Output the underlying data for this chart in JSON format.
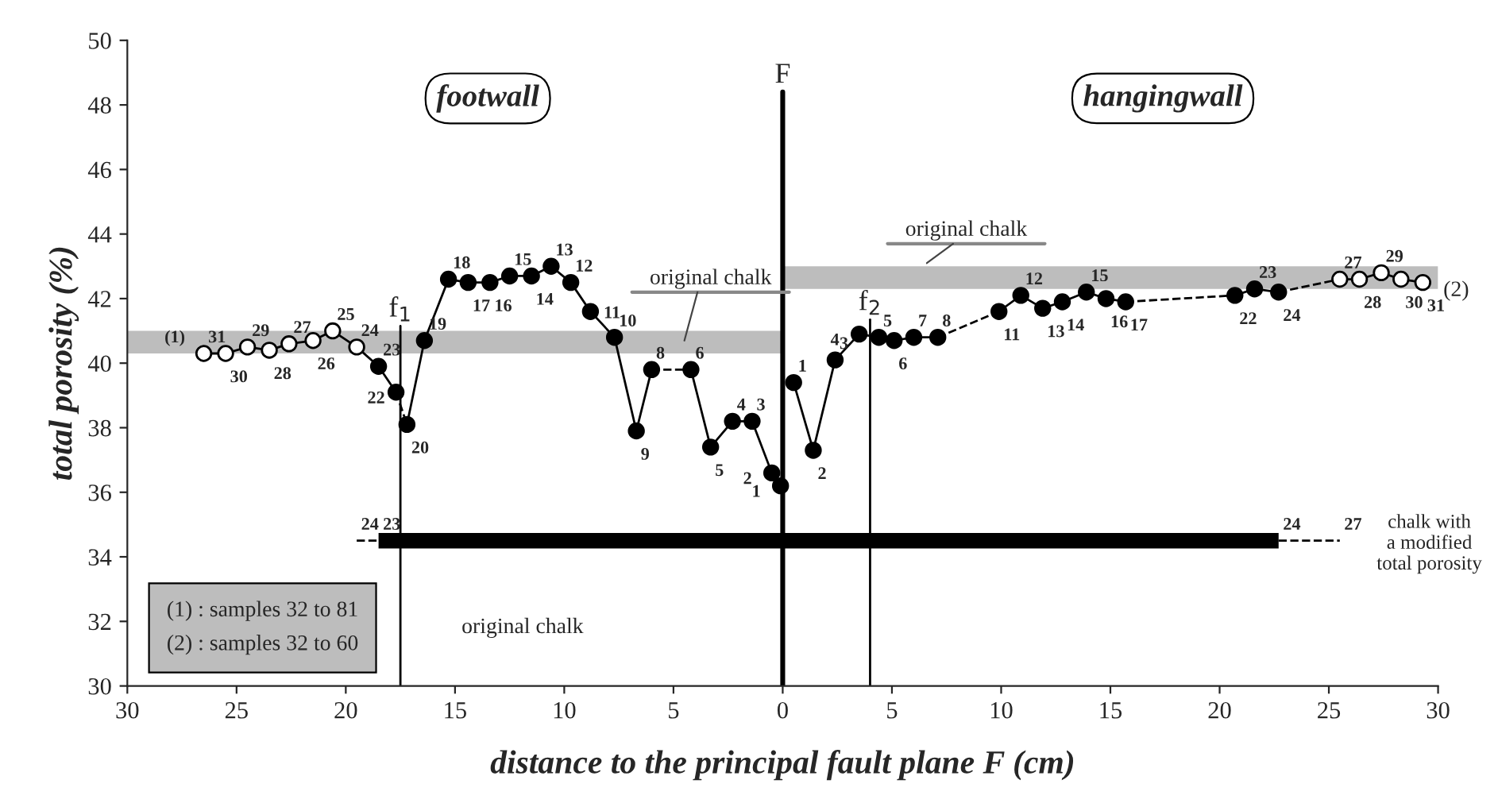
{
  "chart_data": {
    "type": "line",
    "xlabel": "distance to the principal fault plane F (cm)",
    "ylabel": "total porosity (%)",
    "xlim": [
      -30,
      30
    ],
    "xticks": [
      {
        "value": -30,
        "label": "30"
      },
      {
        "value": -25,
        "label": "25"
      },
      {
        "value": -20,
        "label": "20"
      },
      {
        "value": -15,
        "label": "15"
      },
      {
        "value": -10,
        "label": "10"
      },
      {
        "value": -5,
        "label": "5"
      },
      0,
      5,
      10,
      15,
      20,
      25,
      30
    ],
    "ylim": [
      30,
      50
    ],
    "yticks": [
      30,
      32,
      34,
      36,
      38,
      40,
      42,
      44,
      46,
      48,
      50
    ],
    "grid": false,
    "series": [
      {
        "color": "#bdbdbd",
        "x": [
          -30,
          0
        ],
        "values": [
          null,
          null
        ],
        "lower": [
          40.3,
          40.3
        ],
        "upper": [
          41.0,
          41.0
        ]
      },
      {
        "color": "#bdbdbd",
        "x": [
          0,
          30
        ],
        "values": [
          null,
          null
        ],
        "lower": [
          42.3,
          42.3
        ],
        "upper": [
          43.0,
          43.0
        ]
      },
      {
        "color": "#000000",
        "marker": "circle",
        "line_style": "solid",
        "x": [
          -26.5,
          -25.5,
          -24.5,
          -23.5,
          -22.6,
          -21.5,
          -20.6,
          -19.5,
          -18.5,
          -17.7
        ],
        "values": [
          40.3,
          40.3,
          40.5,
          40.4,
          40.6,
          40.7,
          41.0,
          40.5,
          39.9,
          39.1
        ],
        "colors": [
          "#ffffff",
          "#ffffff",
          "#ffffff",
          "#ffffff",
          "#ffffff",
          "#ffffff",
          "#ffffff",
          "#ffffff",
          "#000000",
          "#000000"
        ]
      },
      {
        "color": "#000000",
        "line_style": "dashed",
        "x": [
          -17.7,
          -17.2
        ],
        "values": [
          39.1,
          38.1
        ]
      },
      {
        "color": "#000000",
        "marker": "circle",
        "line_style": "solid",
        "x": [
          -17.2,
          -16.4,
          -15.3,
          -14.4,
          -13.4,
          -12.5,
          -11.5,
          -10.6,
          -9.7,
          -8.8,
          -7.7,
          -6.7,
          -6.0
        ],
        "values": [
          38.1,
          40.7,
          42.6,
          42.5,
          42.5,
          42.7,
          42.7,
          43.0,
          42.5,
          41.6,
          40.8,
          37.9,
          39.8
        ],
        "colors": [
          "#000000",
          "#000000",
          "#000000",
          "#000000",
          "#000000",
          "#000000",
          "#000000",
          "#000000",
          "#000000",
          "#000000",
          "#000000",
          "#000000",
          "#000000"
        ]
      },
      {
        "color": "#000000",
        "line_style": "dashed",
        "x": [
          -6.0,
          -4.2
        ],
        "values": [
          39.8,
          39.8
        ]
      },
      {
        "color": "#000000",
        "marker": "circle",
        "line_style": "solid",
        "x": [
          -4.2,
          -3.3,
          -2.3,
          -1.4,
          -0.5,
          -0.1
        ],
        "values": [
          39.8,
          37.4,
          38.2,
          38.2,
          36.6,
          36.2
        ],
        "colors": [
          "#000000",
          "#000000",
          "#000000",
          "#000000",
          "#000000",
          "#000000"
        ]
      },
      {
        "color": "#000000",
        "marker": "circle",
        "line_style": "solid",
        "x": [
          0.5,
          1.4,
          2.4,
          3.5,
          4.4,
          5.1,
          6.0,
          7.1
        ],
        "values": [
          39.4,
          37.3,
          40.1,
          40.9,
          40.8,
          40.7,
          40.8,
          40.8
        ],
        "colors": [
          "#000000",
          "#000000",
          "#000000",
          "#000000",
          "#000000",
          "#000000",
          "#000000",
          "#000000"
        ]
      },
      {
        "color": "#000000",
        "line_style": "dashed",
        "x": [
          7.1,
          9.9
        ],
        "values": [
          40.8,
          41.6
        ]
      },
      {
        "color": "#000000",
        "marker": "circle",
        "line_style": "solid",
        "x": [
          9.9,
          10.9,
          11.9,
          12.8,
          13.9,
          14.8,
          15.7
        ],
        "values": [
          41.6,
          42.1,
          41.7,
          41.9,
          42.2,
          42.0,
          41.9
        ],
        "colors": [
          "#000000",
          "#000000",
          "#000000",
          "#000000",
          "#000000",
          "#000000",
          "#000000"
        ]
      },
      {
        "color": "#000000",
        "line_style": "dashed",
        "x": [
          15.7,
          20.7
        ],
        "values": [
          41.9,
          42.1
        ]
      },
      {
        "color": "#000000",
        "marker": "circle",
        "line_style": "solid",
        "x": [
          20.7,
          21.6,
          22.7
        ],
        "values": [
          42.1,
          42.3,
          42.2
        ],
        "colors": [
          "#000000",
          "#000000",
          "#000000"
        ]
      },
      {
        "color": "#000000",
        "line_style": "dashed",
        "x": [
          22.7,
          25.5
        ],
        "values": [
          42.2,
          42.6
        ]
      },
      {
        "color": "#000000",
        "marker": "circle",
        "line_style": "solid",
        "x": [
          25.5,
          26.4,
          27.4,
          28.3,
          29.3
        ],
        "values": [
          42.6,
          42.6,
          42.8,
          42.6,
          42.5
        ],
        "colors": [
          "#ffffff",
          "#ffffff",
          "#ffffff",
          "#ffffff",
          "#ffffff"
        ]
      },
      {
        "color": "#000000",
        "marker": "none",
        "line_style": "solid",
        "x": [
          -18.5,
          22.7
        ],
        "values": [
          34.5,
          34.5
        ]
      },
      {
        "color": "#000000",
        "line_style": "dashed",
        "x": [
          -19.5,
          -18.5
        ],
        "values": [
          34.5,
          34.5
        ]
      },
      {
        "color": "#000000",
        "line_style": "dashed",
        "x": [
          22.7,
          25.5
        ],
        "values": [
          34.5,
          34.5
        ]
      }
    ],
    "ref_lines": [
      {
        "axis": "x",
        "value": 0,
        "label": "F"
      },
      {
        "axis": "x",
        "value": -17.5,
        "label": "f$_{1}$"
      },
      {
        "axis": "x",
        "value": 4.0,
        "label": "f$_{2}$"
      }
    ],
    "annotations": [
      "footwall",
      "hangingwall",
      "(1) : samples 32 to 81\n(2) : samples 32 to 60",
      "original chalk",
      "chalk with\na modified\ntotal porosity",
      "original chalk",
      "original chalk",
      {
        "text": "(1)",
        "x": -28.5,
        "y": 40.3
      },
      "(2)",
      {
        "text": "31",
        "x": -26.5,
        "y": 40.3
      },
      {
        "text": "30",
        "x": -25.5,
        "y": 40.3
      },
      {
        "text": "29",
        "x": -24.5,
        "y": 40.5
      },
      {
        "text": "28",
        "x": -23.5,
        "y": 40.4
      },
      {
        "text": "27",
        "x": -22.6,
        "y": 40.6
      },
      {
        "text": "26",
        "x": -21.5,
        "y": 40.7
      },
      {
        "text": "25",
        "x": -20.6,
        "y": 41.0
      },
      {
        "text": "24",
        "x": -19.5,
        "y": 40.5
      },
      {
        "text": "23",
        "x": -18.5,
        "y": 39.9
      },
      {
        "text": "22",
        "x": -17.7,
        "y": 39.1
      },
      {
        "text": "20",
        "x": -17.2,
        "y": 38.1
      },
      {
        "text": "19",
        "x": -16.4,
        "y": 40.7
      },
      {
        "text": "18",
        "x": -15.3,
        "y": 42.6
      },
      {
        "text": "17",
        "x": -14.4,
        "y": 42.5
      },
      {
        "text": "16",
        "x": -13.4,
        "y": 42.5
      },
      {
        "text": "15",
        "x": -12.5,
        "y": 42.7
      },
      {
        "text": "14",
        "x": -11.5,
        "y": 42.7
      },
      {
        "text": "13",
        "x": -10.6,
        "y": 43.0
      },
      {
        "text": "12",
        "x": -9.7,
        "y": 42.5
      },
      {
        "text": "11",
        "x": -8.8,
        "y": 41.6
      },
      {
        "text": "10",
        "x": -7.7,
        "y": 40.8
      },
      {
        "text": "9",
        "x": -6.7,
        "y": 37.9
      },
      {
        "text": "8",
        "x": -6.0,
        "y": 39.8
      },
      {
        "text": "6",
        "x": -4.2,
        "y": 39.8
      },
      {
        "text": "5",
        "x": -3.3,
        "y": 37.4
      },
      {
        "text": "4",
        "x": -2.3,
        "y": 38.2
      },
      {
        "text": "3",
        "x": -1.4,
        "y": 38.2
      },
      {
        "text": "2",
        "x": -0.5,
        "y": 36.6
      },
      {
        "text": "1",
        "x": -0.1,
        "y": 36.2
      },
      {
        "text": "1",
        "x": 0.5,
        "y": 39.4
      },
      {
        "text": "2",
        "x": 1.4,
        "y": 37.3
      },
      {
        "text": "3",
        "x": 2.4,
        "y": 40.1
      },
      {
        "text": "4",
        "x": 3.5,
        "y": 40.9
      },
      {
        "text": "5",
        "x": 4.4,
        "y": 40.8
      },
      {
        "text": "6",
        "x": 5.1,
        "y": 40.7
      },
      {
        "text": "7",
        "x": 6.0,
        "y": 40.8
      },
      {
        "text": "8",
        "x": 7.1,
        "y": 40.8
      },
      {
        "text": "11",
        "x": 9.9,
        "y": 41.6
      },
      {
        "text": "12",
        "x": 10.9,
        "y": 42.1
      },
      {
        "text": "13",
        "x": 11.9,
        "y": 41.7
      },
      {
        "text": "14",
        "x": 12.8,
        "y": 41.9
      },
      {
        "text": "15",
        "x": 13.9,
        "y": 42.2
      },
      {
        "text": "16",
        "x": 14.8,
        "y": 42.0
      },
      {
        "text": "17",
        "x": 15.7,
        "y": 41.9
      },
      {
        "text": "22",
        "x": 20.7,
        "y": 42.1
      },
      {
        "text": "23",
        "x": 21.6,
        "y": 42.3
      },
      {
        "text": "24",
        "x": 22.7,
        "y": 42.2
      },
      {
        "text": "27",
        "x": 25.5,
        "y": 42.6
      },
      {
        "text": "28",
        "x": 26.4,
        "y": 42.6
      },
      {
        "text": "29",
        "x": 27.4,
        "y": 42.8
      },
      {
        "text": "30",
        "x": 28.3,
        "y": 42.6
      },
      {
        "text": "31",
        "x": 29.3,
        "y": 42.5
      },
      {
        "text": "24",
        "x": -19.5,
        "y": 34.5
      },
      {
        "text": "23",
        "x": -18.5,
        "y": 34.5
      },
      {
        "text": "24",
        "x": 22.7,
        "y": 34.5
      },
      {
        "text": "27",
        "x": 25.5,
        "y": 34.5
      }
    ]
  }
}
